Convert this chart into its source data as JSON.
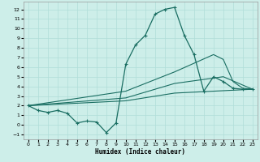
{
  "xlabel": "Humidex (Indice chaleur)",
  "background_color": "#cdeee9",
  "grid_color": "#b0ddd8",
  "line_color": "#1a6e62",
  "xlim": [
    -0.5,
    23.5
  ],
  "ylim": [
    -1.5,
    12.8
  ],
  "xticks": [
    0,
    1,
    2,
    3,
    4,
    5,
    6,
    7,
    8,
    9,
    10,
    11,
    12,
    13,
    14,
    15,
    16,
    17,
    18,
    19,
    20,
    21,
    22,
    23
  ],
  "yticks": [
    -1,
    0,
    1,
    2,
    3,
    4,
    5,
    6,
    7,
    8,
    9,
    10,
    11,
    12
  ],
  "series1_x": [
    0,
    1,
    2,
    3,
    4,
    5,
    6,
    7,
    8,
    9,
    10,
    11,
    12,
    13,
    14,
    15,
    16,
    17,
    18,
    19,
    20,
    21,
    22,
    23
  ],
  "series1_y": [
    2.0,
    1.5,
    1.3,
    1.5,
    1.2,
    0.2,
    0.4,
    0.3,
    -0.8,
    0.2,
    6.3,
    8.3,
    9.3,
    11.5,
    12.0,
    12.2,
    9.3,
    7.3,
    3.5,
    5.0,
    4.5,
    3.8,
    3.7,
    3.7
  ],
  "series2_x": [
    0,
    10,
    15,
    19,
    20,
    21,
    22,
    23
  ],
  "series2_y": [
    2.0,
    3.5,
    5.5,
    7.3,
    6.8,
    4.5,
    3.8,
    3.7
  ],
  "series3_x": [
    0,
    10,
    15,
    20,
    23
  ],
  "series3_y": [
    2.0,
    2.8,
    4.3,
    5.0,
    3.7
  ],
  "series4_x": [
    0,
    10,
    15,
    23
  ],
  "series4_y": [
    2.0,
    2.5,
    3.3,
    3.7
  ]
}
